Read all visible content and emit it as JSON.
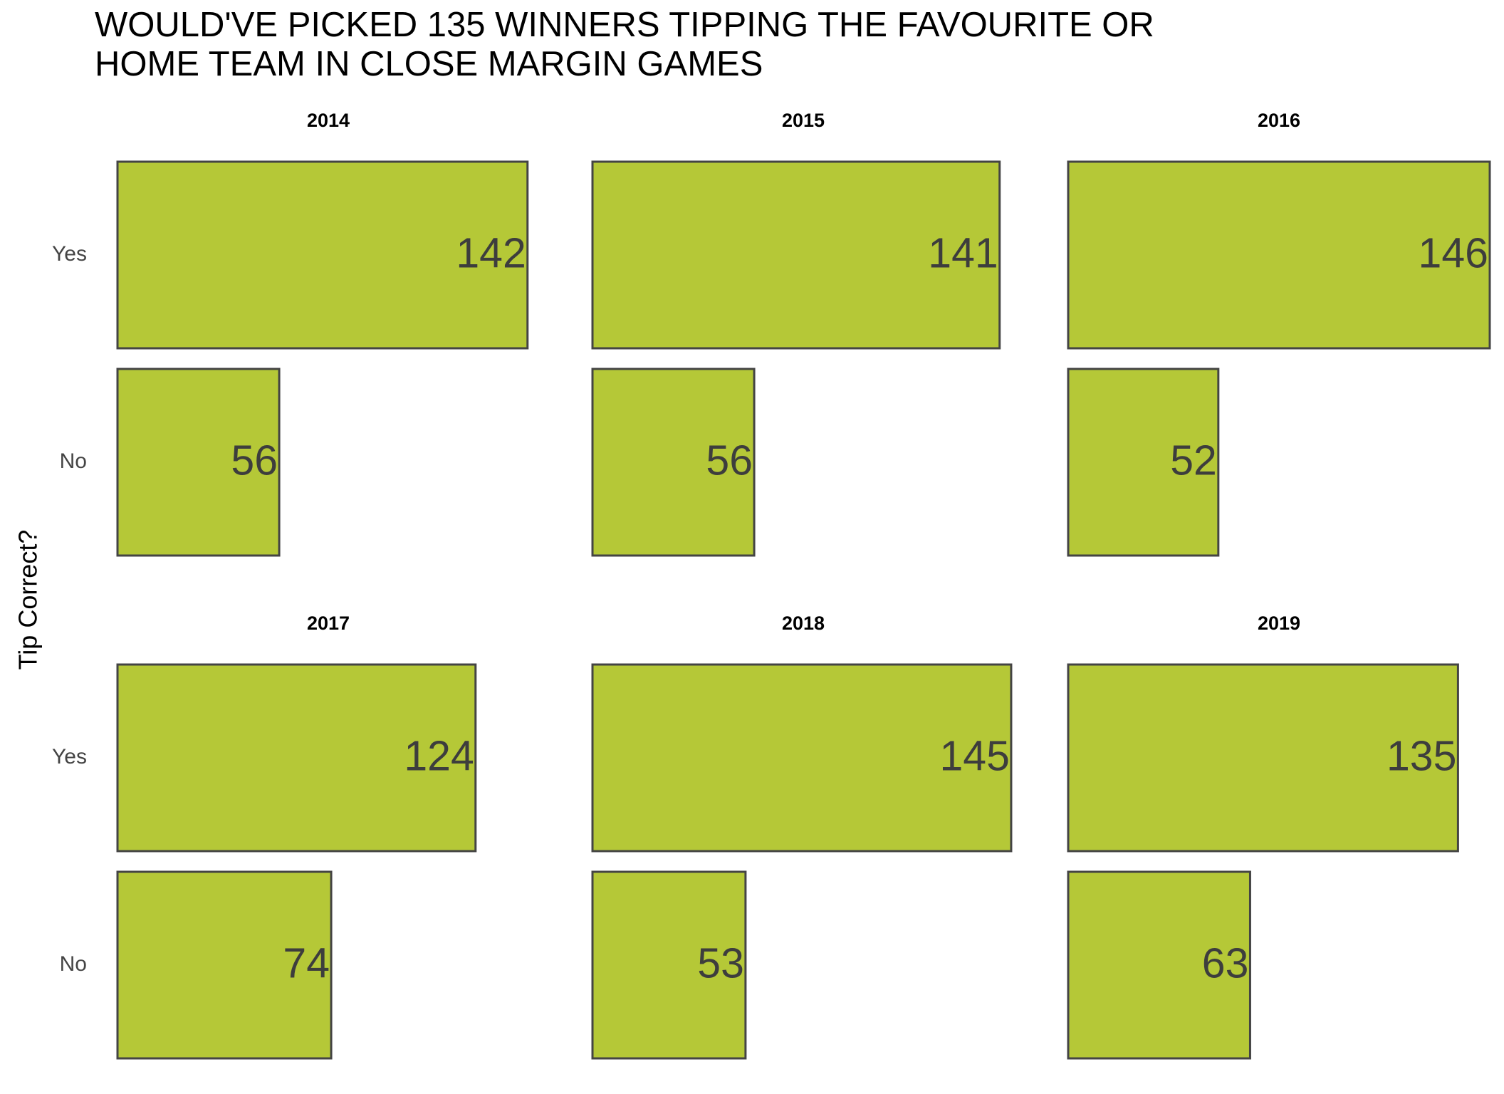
{
  "chart_data": {
    "type": "bar",
    "orientation": "horizontal",
    "title_lines": [
      "WOULD'VE PICKED 135 WINNERS TIPPING THE FAVOURITE OR",
      "HOME TEAM IN CLOSE MARGIN GAMES"
    ],
    "ylabel": "Tip Correct?",
    "xlabel": "",
    "categories": [
      "Yes",
      "No"
    ],
    "xlim": [
      0,
      146
    ],
    "grid": false,
    "legend": "none",
    "bar_color": "#b5c837",
    "bar_border_color": "#444444",
    "facets": [
      {
        "name": "2014",
        "values": [
          142,
          56
        ]
      },
      {
        "name": "2015",
        "values": [
          141,
          56
        ]
      },
      {
        "name": "2016",
        "values": [
          146,
          52
        ]
      },
      {
        "name": "2017",
        "values": [
          124,
          74
        ]
      },
      {
        "name": "2018",
        "values": [
          145,
          53
        ]
      },
      {
        "name": "2019",
        "values": [
          135,
          63
        ]
      }
    ]
  }
}
